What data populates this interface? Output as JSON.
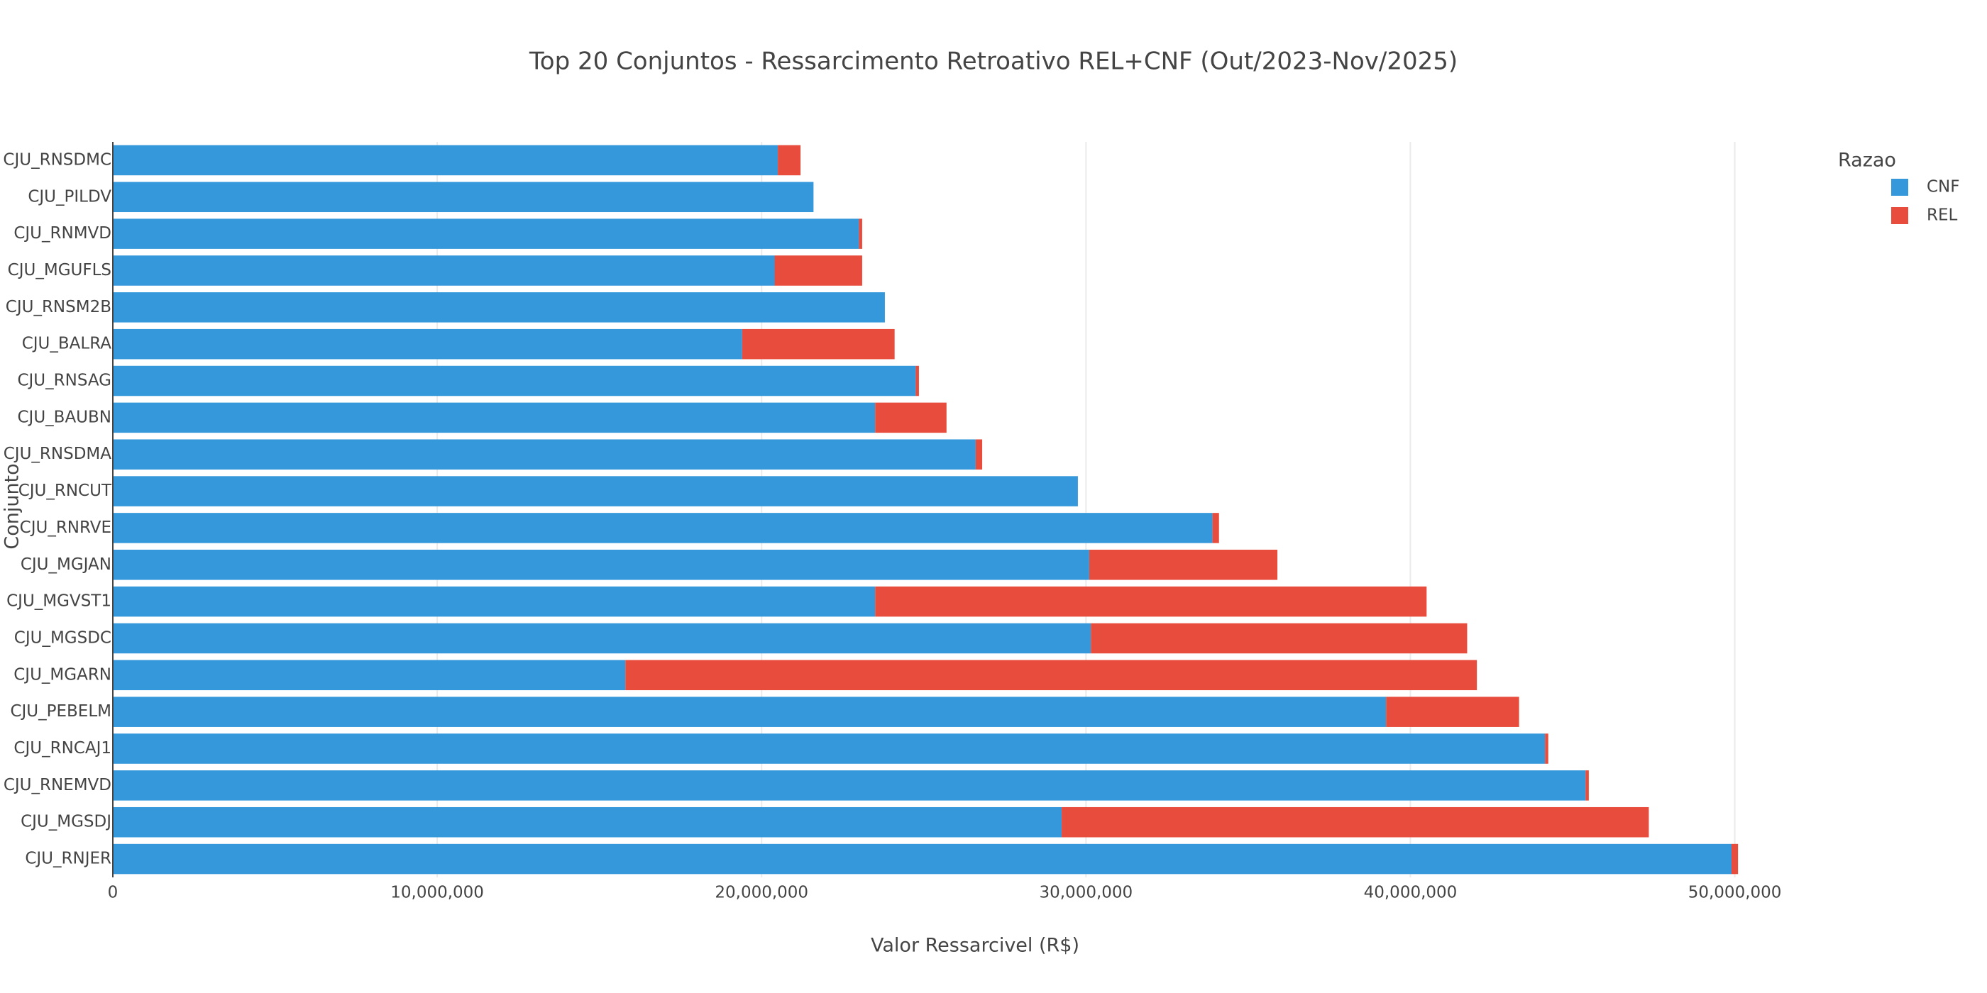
{
  "chart_data": {
    "type": "stacked-hbar",
    "title": "Top 20 Conjuntos - Ressarcimento Retroativo REL+CNF (Out/2023-Nov/2025)",
    "x_label": "Valor Ressarcivel (R$)",
    "y_label": "Conjunto",
    "legend_title": "Razao",
    "legend_position": "top-right",
    "grid": true,
    "categories": [
      "CJU_RNSDMC",
      "CJU_PILDV",
      "CJU_RNMVD",
      "CJU_MGUFLS",
      "CJU_RNSM2B",
      "CJU_BALRA",
      "CJU_RNSAG",
      "CJU_BAUBN",
      "CJU_RNSDMA",
      "CJU_RNCUT",
      "CJU_RNRVE",
      "CJU_MGJAN",
      "CJU_MGVST1",
      "CJU_MGSDC",
      "CJU_MGARN",
      "CJU_PEBELM",
      "CJU_RNCAJ1",
      "CJU_RNEMVD",
      "CJU_MGSDJ",
      "CJU_RNJER"
    ],
    "series": [
      {
        "name": "CNF",
        "color": "#3498db",
        "values": [
          20500000,
          21600000,
          23000000,
          20400000,
          23800000,
          19400000,
          24750000,
          23500000,
          26600000,
          29750000,
          33900000,
          30100000,
          23500000,
          30150000,
          15800000,
          39250000,
          44150000,
          45400000,
          29250000,
          49900000
        ]
      },
      {
        "name": "REL",
        "color": "#e74c3c",
        "values": [
          700000,
          0,
          100000,
          2700000,
          0,
          4700000,
          100000,
          2200000,
          200000,
          0,
          200000,
          5800000,
          17000000,
          11600000,
          26250000,
          4100000,
          100000,
          100000,
          18100000,
          200000
        ]
      }
    ],
    "xlim": [
      0,
      52000000
    ],
    "xticks": [
      0,
      {
        "value": 10000000,
        "label": "10,000,000"
      },
      {
        "value": 20000000,
        "label": "20,000,000"
      },
      {
        "value": 30000000,
        "label": "30,000,000"
      },
      {
        "value": 40000000,
        "label": "40,000,000"
      },
      {
        "value": 50000000,
        "label": "50,000,000"
      }
    ]
  }
}
